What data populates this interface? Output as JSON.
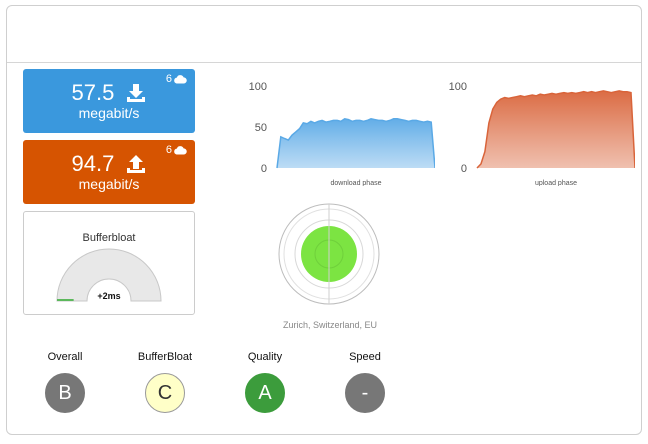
{
  "download": {
    "value": "57.5",
    "unit": "megabit/s",
    "connections": "6",
    "icon": "download-icon",
    "color": "#3a98dd"
  },
  "upload": {
    "value": "94.7",
    "unit": "megabit/s",
    "connections": "6",
    "icon": "upload-icon",
    "color": "#d65401"
  },
  "bufferbloat": {
    "title": "Bufferbloat",
    "value": "+2ms",
    "level": 0.02,
    "gauge_color": "#e8e8e8",
    "indicator_color": "#5cb85c"
  },
  "server": {
    "location": "Zurich, Switzerland, EU"
  },
  "radar": {
    "fill_color": "#7ce442"
  },
  "chart_data": [
    {
      "type": "area",
      "xlabel": "download phase",
      "ylim": [
        0,
        100
      ],
      "yticks": [
        "0",
        "50",
        "100"
      ],
      "color": "#5aa9e6",
      "values": [
        0,
        38,
        36,
        34,
        40,
        44,
        48,
        55,
        54,
        57,
        55,
        57,
        58,
        56,
        57,
        58,
        58,
        57,
        60,
        59,
        57,
        58,
        58,
        57,
        58,
        60,
        59,
        58,
        58,
        57,
        58,
        60,
        60,
        59,
        58,
        57,
        58,
        58,
        57,
        56,
        57,
        56,
        0
      ]
    },
    {
      "type": "area",
      "xlabel": "upload phase",
      "ylim": [
        0,
        100
      ],
      "yticks": [
        "0",
        "100"
      ],
      "color": "#d9643a",
      "values": [
        0,
        5,
        20,
        55,
        72,
        80,
        84,
        86,
        85,
        86,
        87,
        88,
        87,
        88,
        89,
        88,
        90,
        89,
        90,
        91,
        90,
        91,
        92,
        91,
        92,
        91,
        92,
        93,
        92,
        93,
        92,
        93,
        94,
        93,
        92,
        93,
        94,
        93,
        93,
        92,
        0
      ]
    }
  ],
  "grades": [
    {
      "label": "Overall",
      "grade": "B",
      "bg": "#777777",
      "fg": "#ffffff",
      "border": "#777777"
    },
    {
      "label": "BufferBloat",
      "grade": "C",
      "bg": "#ffffc8",
      "fg": "#333333",
      "border": "#999999"
    },
    {
      "label": "Quality",
      "grade": "A",
      "bg": "#3c9c3c",
      "fg": "#ffffff",
      "border": "#3c9c3c"
    },
    {
      "label": "Speed",
      "grade": "-",
      "bg": "#777777",
      "fg": "#ffffff",
      "border": "#777777"
    }
  ]
}
